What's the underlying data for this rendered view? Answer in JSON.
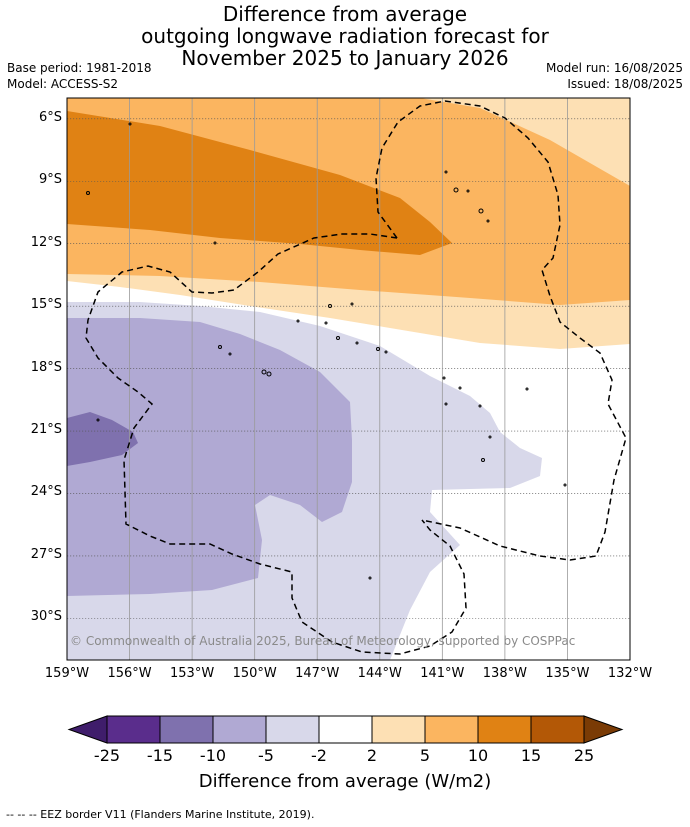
{
  "title": {
    "line1": "Difference from average",
    "line2": "outgoing longwave radiation forecast for",
    "line3": "November 2025 to January 2026"
  },
  "meta": {
    "base_period": "Base period: 1981-2018",
    "model": "Model: ACCESS-S2",
    "model_run": "Model run: 16/08/2025",
    "issued": "Issued: 18/08/2025"
  },
  "map": {
    "extent": {
      "lon": [
        -159,
        -132
      ],
      "lat": [
        -32,
        -5
      ]
    },
    "lat_labels": [
      "6°S",
      "9°S",
      "12°S",
      "15°S",
      "18°S",
      "21°S",
      "24°S",
      "27°S",
      "30°S"
    ],
    "lon_labels": [
      "159°W",
      "156°W",
      "153°W",
      "150°W",
      "147°W",
      "144°W",
      "141°W",
      "138°W",
      "135°W",
      "132°W"
    ],
    "copyright": "© Commonwealth of Australia 2025, Bureau of Meteorology, supported by COSPPac"
  },
  "colorbar": {
    "ticks": [
      "-25",
      "-15",
      "-10",
      "-5",
      "-2",
      "2",
      "5",
      "10",
      "15",
      "25"
    ],
    "colors": [
      "#3f1d6b",
      "#5a2d8c",
      "#7f71ae",
      "#b0a9d3",
      "#d8d8ea",
      "#ffffff",
      "#fde0b4",
      "#fbb560",
      "#e08214",
      "#b35806",
      "#7a3b05"
    ],
    "label": "Difference from average (W/m2)"
  },
  "footnote": "-- -- -- EEZ border V11 (Flanders Marine Institute, 2019)."
}
